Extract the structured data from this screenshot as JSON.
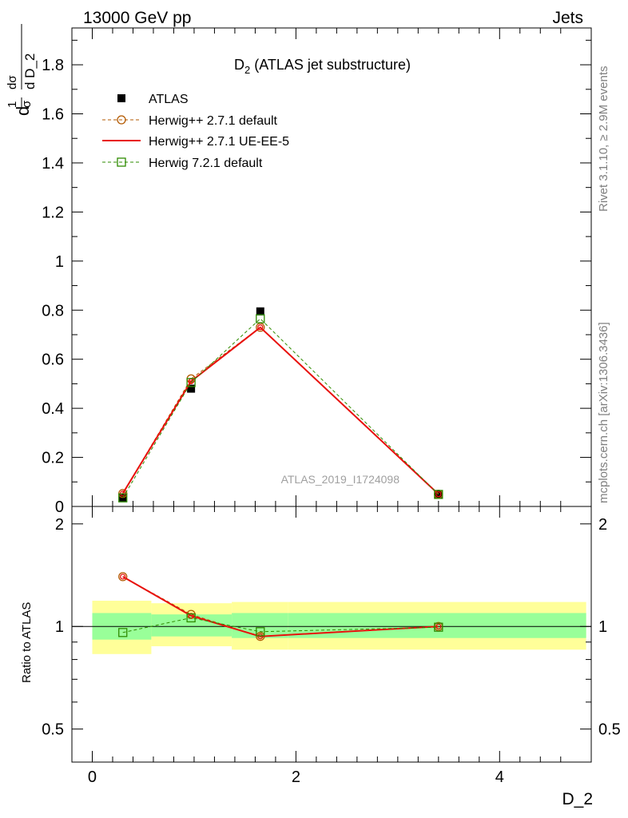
{
  "header": {
    "left": "13000 GeV pp",
    "right": "Jets"
  },
  "side_text": {
    "rivet": "Rivet 3.1.10, ≥ 2.9M events",
    "mcplots": "mcplots.cern.ch [arXiv:1306.3436]"
  },
  "chart_data": [
    {
      "type": "line",
      "title_main": "D",
      "title_sub": "2",
      "title_rest": " (ATLAS jet substructure)",
      "ylabel": "1/σ dσ/d D_2",
      "xlabel": "D_2",
      "xlim": [
        -0.2,
        4.9
      ],
      "ylim": [
        0,
        1.95
      ],
      "yticks": [
        0.2,
        0.4,
        0.6,
        0.8,
        1,
        1.2,
        1.4,
        1.6,
        1.8
      ],
      "ytick_labels": [
        "0.2",
        "0.4",
        "0.6",
        "0.8",
        "1",
        "1.2",
        "1.4",
        "1.6",
        "1.8"
      ],
      "y_bottom_label": "0",
      "watermark": "ATLAS_2019_I1724098",
      "legend_position": "top-left",
      "series": [
        {
          "name": "ATLAS",
          "style": "marker-square",
          "color": "#000000",
          "x": [
            0.3,
            0.97,
            1.65,
            3.4
          ],
          "y": [
            0.037,
            0.48,
            0.795,
            0.05
          ]
        },
        {
          "name": "Herwig++ 2.7.1 default",
          "style": "dashed-circle",
          "color": "#b35900",
          "x": [
            0.3,
            0.97,
            1.65,
            3.4
          ],
          "y": [
            0.053,
            0.52,
            0.73,
            0.05
          ]
        },
        {
          "name": "Herwig++ 2.7.1 UE-EE-5",
          "style": "solid",
          "color": "#e8100c",
          "x": [
            0.3,
            0.97,
            1.65,
            3.4
          ],
          "y": [
            0.053,
            0.51,
            0.73,
            0.05
          ]
        },
        {
          "name": "Herwig 7.2.1 default",
          "style": "dashed-square",
          "color": "#2e8b00",
          "x": [
            0.3,
            0.97,
            1.65,
            3.4
          ],
          "y": [
            0.035,
            0.505,
            0.765,
            0.049
          ]
        }
      ]
    },
    {
      "type": "line",
      "ylabel": "Ratio to ATLAS",
      "xlabel": "D_2",
      "xlim": [
        -0.2,
        4.9
      ],
      "ylim": [
        0.4,
        2.25
      ],
      "yscale": "log",
      "yticks": [
        0.5,
        1,
        2
      ],
      "ytick_labels": [
        "0.5",
        "1",
        "2"
      ],
      "xticks": [
        0,
        2,
        4
      ],
      "xtick_labels": [
        "0",
        "2",
        "4"
      ],
      "bands": [
        {
          "x0": 0.0,
          "x1": 0.58,
          "inner": [
            0.915,
            1.095
          ],
          "outer": [
            0.83,
            1.19
          ]
        },
        {
          "x0": 0.58,
          "x1": 1.37,
          "inner": [
            0.935,
            1.085
          ],
          "outer": [
            0.875,
            1.17
          ]
        },
        {
          "x0": 1.37,
          "x1": 1.92,
          "inner": [
            0.925,
            1.095
          ],
          "outer": [
            0.855,
            1.18
          ]
        },
        {
          "x0": 1.92,
          "x1": 4.85,
          "inner": [
            0.925,
            1.095
          ],
          "outer": [
            0.855,
            1.18
          ]
        }
      ],
      "band_colors": {
        "inner": "#99ff99",
        "outer": "#ffff99"
      },
      "series": [
        {
          "name": "Herwig++ 2.7.1 default",
          "style": "dashed-circle",
          "color": "#b35900",
          "x": [
            0.3,
            0.97,
            1.65,
            3.4
          ],
          "y": [
            1.4,
            1.085,
            0.935,
            1.0
          ]
        },
        {
          "name": "Herwig++ 2.7.1 UE-EE-5",
          "style": "solid",
          "color": "#e8100c",
          "x": [
            0.3,
            0.97,
            1.65,
            3.4
          ],
          "y": [
            1.4,
            1.075,
            0.935,
            1.0
          ]
        },
        {
          "name": "Herwig 7.2.1 default",
          "style": "dashed-square",
          "color": "#2e8b00",
          "x": [
            0.3,
            0.97,
            1.65,
            3.4
          ],
          "y": [
            0.96,
            1.06,
            0.965,
            0.995
          ]
        }
      ]
    }
  ]
}
